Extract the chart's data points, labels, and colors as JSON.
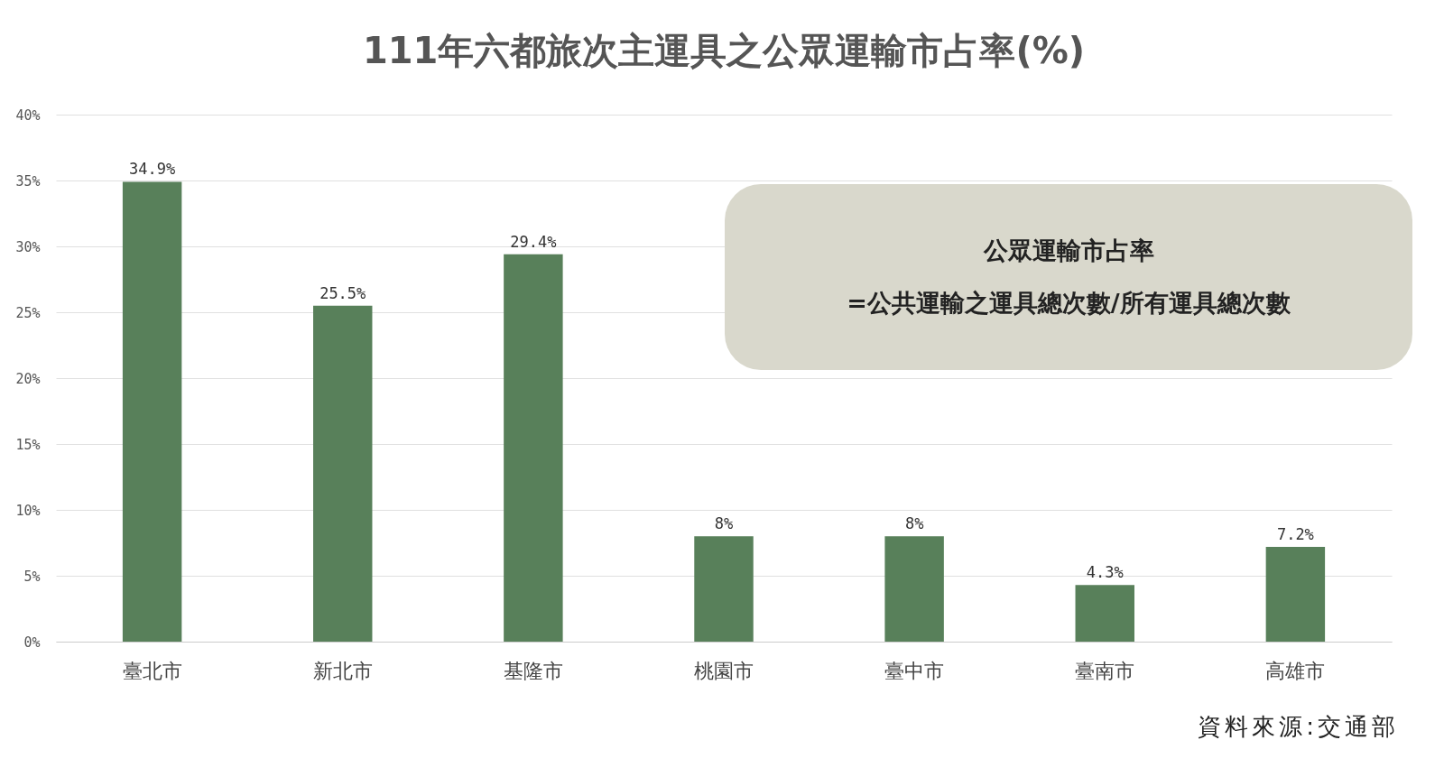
{
  "chart_data": {
    "type": "bar",
    "title": "111年六都旅次主運具之公眾運輸市占率(%)",
    "categories": [
      "臺北市",
      "新北市",
      "基隆市",
      "桃園市",
      "臺中市",
      "臺南市",
      "高雄市"
    ],
    "values": [
      34.9,
      25.5,
      29.4,
      8,
      8,
      4.3,
      7.2
    ],
    "value_labels": [
      "34.9%",
      "25.5%",
      "29.4%",
      "8%",
      "8%",
      "4.3%",
      "7.2%"
    ],
    "color": "#58805a",
    "ylim": [
      0,
      40
    ],
    "yticks": [
      {
        "value": 0,
        "label": "0%"
      },
      {
        "value": 5,
        "label": "5%"
      },
      {
        "value": 10,
        "label": "10%"
      },
      {
        "value": 15,
        "label": "15%"
      },
      {
        "value": 20,
        "label": "20%"
      },
      {
        "value": 25,
        "label": "25%"
      },
      {
        "value": 30,
        "label": "30%"
      },
      {
        "value": 35,
        "label": "35%"
      },
      {
        "value": 40,
        "label": "40%"
      }
    ],
    "grid": "y",
    "annotations": [
      "公眾運輸市占率",
      "=公共運輸之運具總次數/所有運具總次數",
      "資料來源:交通部"
    ]
  }
}
